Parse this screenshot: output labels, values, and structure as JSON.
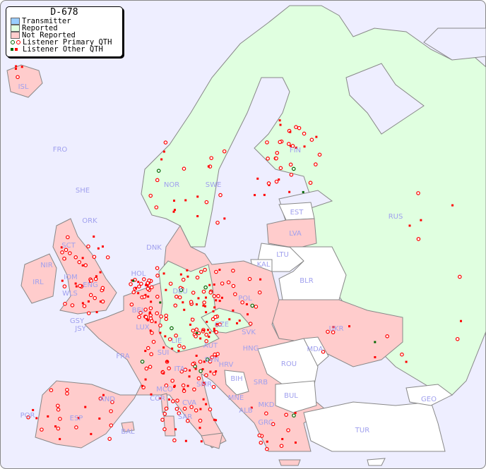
{
  "legend": {
    "title": "D-678",
    "items": [
      {
        "label": "Transmitter",
        "color": "#99ccff"
      },
      {
        "label": "Reported",
        "color": "#e0ffe0"
      },
      {
        "label": "Not Reported",
        "color": "#ffcccc"
      },
      {
        "label": "Listener Primary QTH",
        "colors": [
          "#006600",
          "#ff0000"
        ],
        "marker": "circle"
      },
      {
        "label": "Listener Other QTH",
        "colors": [
          "#006600",
          "#ff0000"
        ],
        "marker": "square"
      }
    ]
  },
  "colors": {
    "sea": "#eeeeff",
    "reported": "#e0ffe0",
    "not_reported": "#ffcccc",
    "no_data": "#ffffff",
    "border": "#888888",
    "label": "#a0a0ee"
  },
  "country_labels": [
    "ISL",
    "FRO",
    "SHE",
    "ORK",
    "NOR",
    "SWE",
    "FIN",
    "EST",
    "LVA",
    "LTU",
    "RUS",
    "KAL",
    "BLR",
    "POL",
    "DNK",
    "HOL",
    "DEU",
    "IRL",
    "NIR",
    "SCT",
    "IOM",
    "WLS",
    "ENG",
    "GSY",
    "JSY",
    "BEL",
    "LUX",
    "CZE",
    "SVK",
    "UKR",
    "MDA",
    "AUT",
    "HNG",
    "SUI",
    "LIE",
    "FRA",
    "SVN",
    "HRV",
    "ROU",
    "ITA",
    "BIH",
    "SRB",
    "BUL",
    "MNE",
    "MKD",
    "ALB",
    "GRC",
    "TUR",
    "GEO",
    "AND",
    "POR",
    "ESP",
    "MCO",
    "COR",
    "SMR",
    "CVA",
    "SAR",
    "BAL"
  ]
}
